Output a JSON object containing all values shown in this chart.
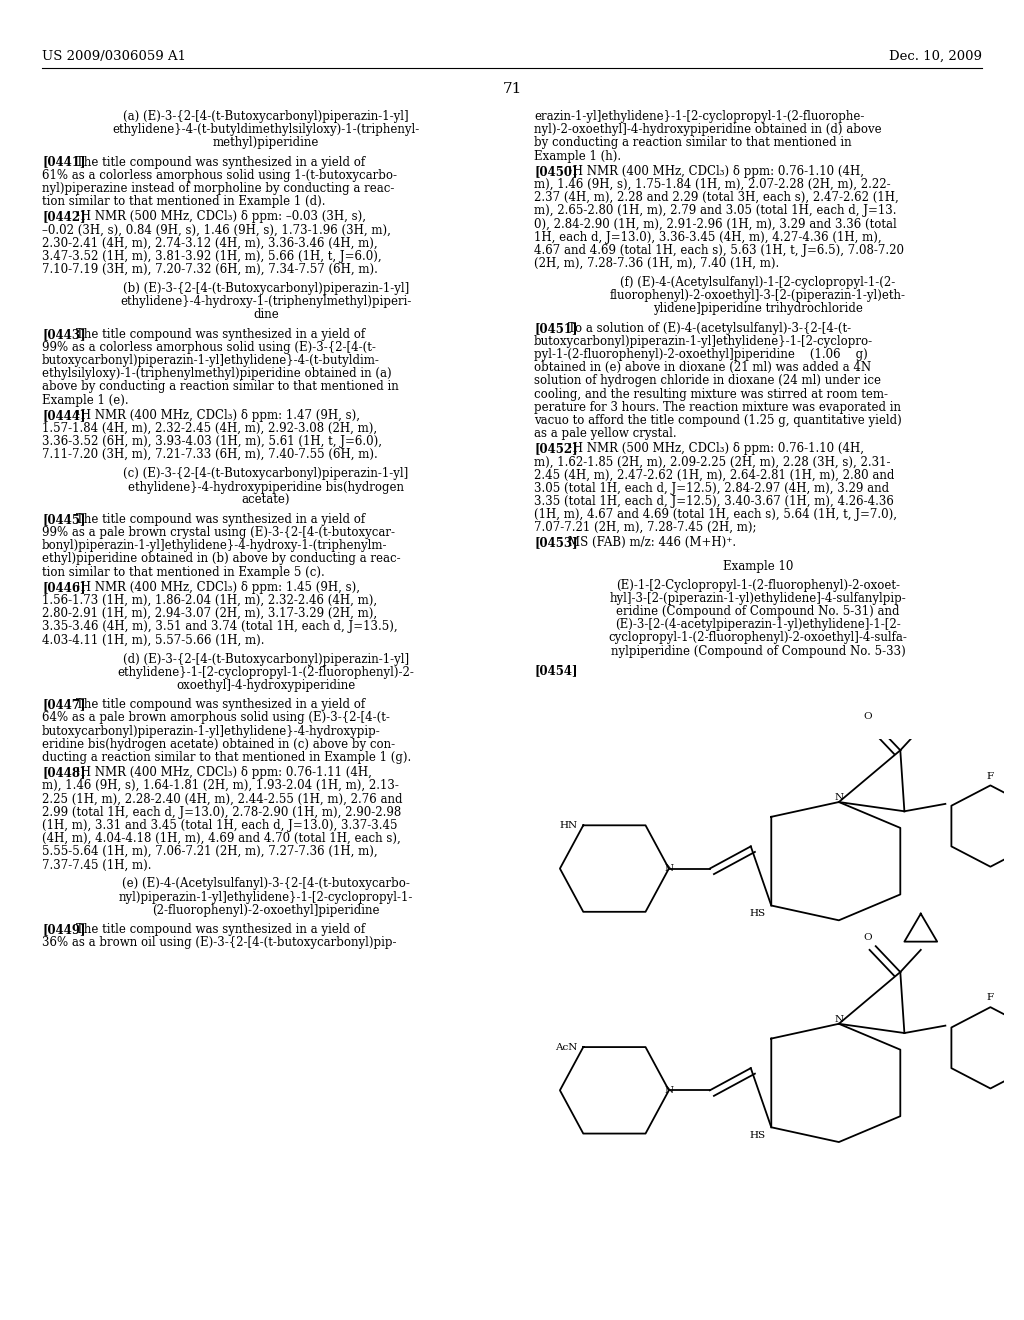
{
  "page_number": "71",
  "patent_number": "US 2009/0306059 A1",
  "patent_date": "Dec. 10, 2009",
  "background_color": "#ffffff",
  "text_color": "#000000",
  "font_size_body": 8.5,
  "font_size_header": 9.0,
  "font_size_page_num": 11.0,
  "lw": 1.3
}
